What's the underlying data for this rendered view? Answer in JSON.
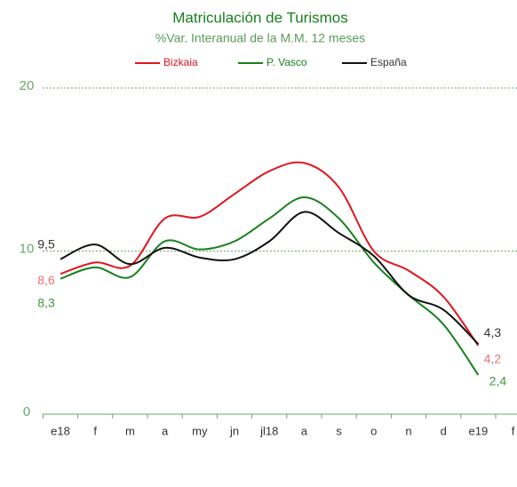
{
  "chart_data": {
    "type": "line",
    "title": "Matriculación de Turismos",
    "subtitle": "%Var. Interanual de la M.M. 12 meses",
    "categories": [
      "e18",
      "f",
      "m",
      "a",
      "my",
      "jn",
      "jl18",
      "a",
      "s",
      "o",
      "n",
      "d",
      "e19",
      "f"
    ],
    "series": [
      {
        "name": "Bizkaia",
        "color": "#e0151f",
        "values": [
          8.6,
          9.3,
          9.1,
          12.0,
          12.1,
          13.5,
          14.9,
          15.4,
          13.9,
          10.0,
          8.8,
          7.2,
          4.2,
          null
        ],
        "value_labels": [
          "8,6",
          null,
          null,
          null,
          null,
          null,
          null,
          null,
          null,
          null,
          null,
          null,
          "4,2",
          null
        ]
      },
      {
        "name": "P. Vasco",
        "color": "#17801e",
        "values": [
          8.3,
          9.0,
          8.4,
          10.6,
          10.1,
          10.6,
          12.0,
          13.3,
          12.0,
          9.3,
          7.3,
          5.5,
          2.4,
          null
        ],
        "value_labels": [
          "8,3",
          null,
          null,
          null,
          null,
          null,
          null,
          null,
          null,
          null,
          null,
          null,
          "2,4",
          null
        ]
      },
      {
        "name": "España",
        "color": "#111111",
        "values": [
          9.5,
          10.4,
          9.2,
          10.2,
          9.6,
          9.5,
          10.6,
          12.4,
          11.1,
          9.7,
          7.3,
          6.4,
          4.3,
          null
        ],
        "value_labels": [
          "9,5",
          null,
          null,
          null,
          null,
          null,
          null,
          null,
          null,
          null,
          null,
          null,
          "4,3",
          null
        ]
      }
    ],
    "ylim": [
      0,
      20
    ],
    "yticks": [
      0,
      10,
      20
    ],
    "grid": true,
    "legend": "top"
  }
}
